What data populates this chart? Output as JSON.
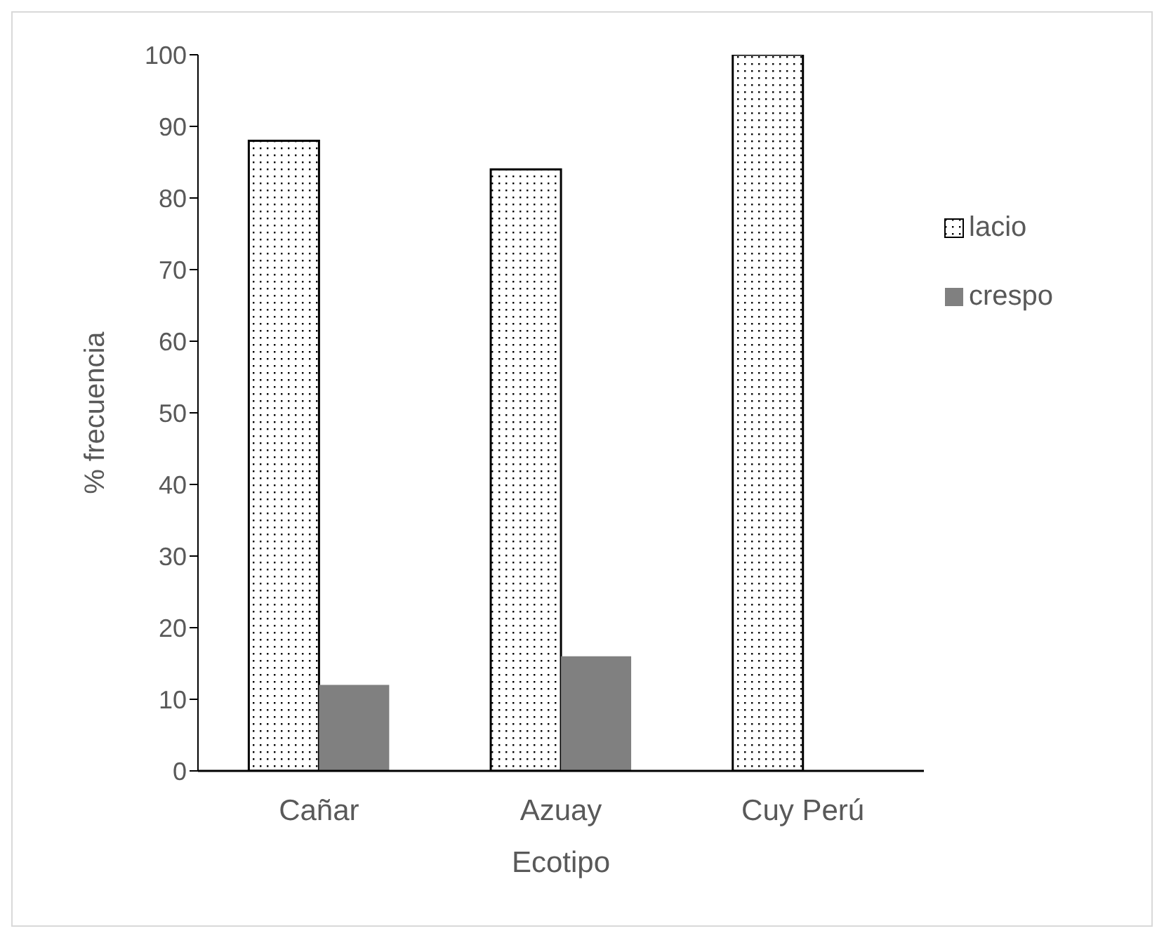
{
  "chart_data": {
    "type": "bar",
    "xlabel": "Ecotipo",
    "ylabel": "% frecuencia",
    "categories": [
      "Cañar",
      "Azuay",
      "Cuy Perú"
    ],
    "series": [
      {
        "name": "lacio",
        "color": "#000000",
        "values": [
          88,
          84,
          100
        ]
      },
      {
        "name": "crespo",
        "color": "#808080",
        "values": [
          12,
          16,
          0
        ]
      }
    ],
    "ylim": [
      0,
      100
    ],
    "yticks": [
      0,
      10,
      20,
      30,
      40,
      50,
      60,
      70,
      80,
      90,
      100
    ],
    "legend": "right"
  }
}
